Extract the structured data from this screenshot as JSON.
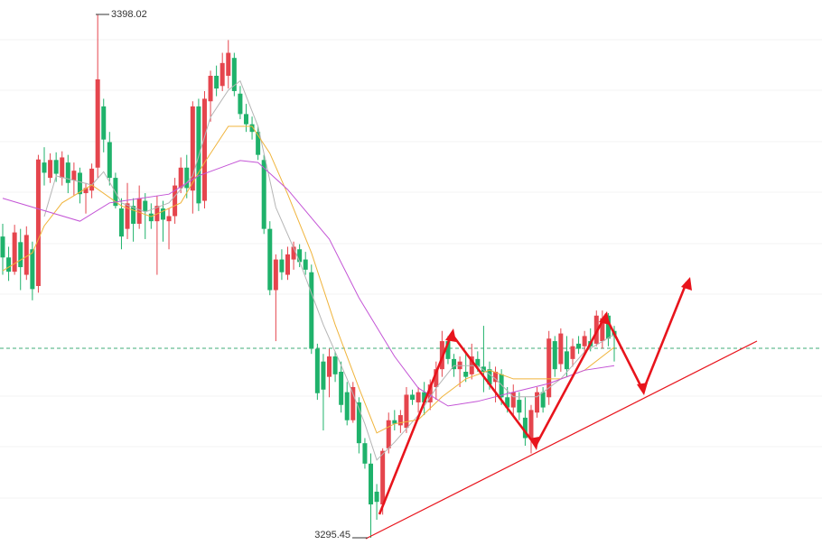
{
  "chart_data": {
    "type": "candlestick",
    "ylim": [
      3294.05,
      3400.85
    ],
    "up_color": "#e5454d",
    "down_color": "#1fb26b",
    "open": [
      3354.5,
      3350.4,
      3347.6,
      3353.4,
      3347.0,
      3352.0,
      3344.8,
      3369.0,
      3366.0,
      3369.5,
      3366.0,
      3369.0,
      3365.5,
      3367.0,
      3363.0,
      3363.5,
      3368.0,
      3380.0,
      3373.0,
      3366.0,
      3360.0,
      3356.0,
      3360.5,
      3357.0,
      3361.5,
      3359.0,
      3357.5,
      3360.0,
      3357.5,
      3358.5,
      3364.0,
      3368.0,
      3363.5,
      3380.0,
      3361.5,
      3381.0,
      3386.0,
      3384.0,
      3386.0,
      3389.5,
      3382.5,
      3378.5,
      3376.5,
      3375.0,
      3369.5,
      3356.0,
      3344.0,
      3350.0,
      3347.0,
      3350.0,
      3352.0,
      3350.0,
      3347.5,
      3332.5,
      3330.0,
      3327.0,
      3331.0,
      3328.0,
      3324.0,
      3318.5,
      3322.0,
      3314.0,
      3310.0,
      3304.5,
      3302.0,
      3313.0,
      3318.5,
      3317.5,
      3317.0,
      3323.5,
      3322.0,
      3324.0,
      3322.0,
      3325.0,
      3328.5,
      3334.0,
      3330.5,
      3328.5,
      3328.0,
      3327.5,
      3330.5,
      3329.0,
      3328.5,
      3326.0,
      3327.5,
      3323.0,
      3321.0,
      3322.5,
      3319.0,
      3315.0,
      3320.0,
      3324.0,
      3323.0,
      3334.0,
      3329.5,
      3332.0,
      3330.5,
      3333.5,
      3333.0,
      3334.0,
      3333.5,
      3334.0,
      3339.0,
      3336.0
    ],
    "high": [
      3357.0,
      3352.5,
      3356.8,
      3356.0,
      3356.5,
      3353.5,
      3370.5,
      3372.0,
      3370.8,
      3371.0,
      3371.2,
      3370.5,
      3369.0,
      3368.0,
      3365.0,
      3368.8,
      3398.02,
      3381.5,
      3375.0,
      3367.0,
      3362.0,
      3365.0,
      3362.0,
      3364.5,
      3363.0,
      3361.0,
      3362.5,
      3361.5,
      3360.0,
      3366.0,
      3370.0,
      3370.5,
      3381.0,
      3381.5,
      3383.0,
      3387.0,
      3388.0,
      3390.5,
      3393.0,
      3390.5,
      3384.0,
      3380.5,
      3378.0,
      3376.0,
      3370.5,
      3357.5,
      3351.0,
      3352.0,
      3352.5,
      3353.5,
      3353.0,
      3351.5,
      3349.0,
      3333.5,
      3331.5,
      3332.5,
      3332.0,
      3330.0,
      3326.0,
      3326.0,
      3323.0,
      3315.0,
      3312.0,
      3306.0,
      3313.0,
      3320.0,
      3320.5,
      3320.5,
      3325.0,
      3324.5,
      3325.0,
      3326.0,
      3326.5,
      3330.0,
      3336.0,
      3335.0,
      3331.5,
      3331.0,
      3332.0,
      3333.5,
      3332.0,
      3337.0,
      3330.0,
      3329.0,
      3328.5,
      3325.0,
      3325.5,
      3324.0,
      3323.0,
      3321.5,
      3325.0,
      3325.0,
      3336.0,
      3335.0,
      3336.5,
      3335.0,
      3334.5,
      3335.0,
      3336.0,
      3336.5,
      3340.0,
      3340.0,
      3339.5,
      3337.0
    ],
    "low": [
      3347.0,
      3345.8,
      3347.0,
      3344.0,
      3346.0,
      3342.0,
      3343.5,
      3364.5,
      3365.0,
      3365.2,
      3364.5,
      3363.0,
      3362.5,
      3361.0,
      3359.0,
      3362.0,
      3366.0,
      3371.0,
      3364.5,
      3360.0,
      3352.0,
      3354.0,
      3353.5,
      3356.0,
      3354.0,
      3356.0,
      3347.0,
      3353.5,
      3352.0,
      3357.0,
      3363.0,
      3362.0,
      3359.0,
      3359.5,
      3360.0,
      3377.0,
      3382.0,
      3383.0,
      3383.5,
      3382.0,
      3377.5,
      3375.0,
      3373.5,
      3369.5,
      3355.0,
      3343.0,
      3334.0,
      3346.0,
      3346.0,
      3348.0,
      3348.5,
      3347.0,
      3331.5,
      3322.5,
      3316.5,
      3323.0,
      3326.0,
      3320.0,
      3317.5,
      3318.0,
      3312.0,
      3309.0,
      3295.45,
      3299.0,
      3300.0,
      3312.0,
      3316.5,
      3316.0,
      3316.0,
      3321.5,
      3320.0,
      3319.5,
      3320.5,
      3322.5,
      3327.0,
      3329.5,
      3327.0,
      3325.0,
      3326.0,
      3326.5,
      3328.0,
      3324.0,
      3324.5,
      3322.0,
      3321.5,
      3320.0,
      3319.5,
      3318.5,
      3313.5,
      3312.0,
      3319.0,
      3320.0,
      3321.5,
      3327.0,
      3328.0,
      3327.0,
      3329.0,
      3331.5,
      3331.5,
      3332.0,
      3333.0,
      3332.5,
      3333.0,
      3330.0
    ],
    "close": [
      3350.4,
      3347.6,
      3355.3,
      3348.5,
      3354.8,
      3344.2,
      3369.6,
      3367.0,
      3369.5,
      3366.8,
      3370.0,
      3365.0,
      3367.4,
      3362.8,
      3364.0,
      3367.8,
      3385.3,
      3373.5,
      3366.0,
      3360.5,
      3354.5,
      3361.0,
      3357.0,
      3362.0,
      3359.5,
      3357.5,
      3360.5,
      3357.8,
      3358.5,
      3364.5,
      3368.0,
      3364.0,
      3380.0,
      3361.0,
      3381.5,
      3386.0,
      3383.5,
      3388.5,
      3390.5,
      3383.0,
      3378.5,
      3376.5,
      3375.0,
      3370.5,
      3356.0,
      3344.0,
      3350.0,
      3347.5,
      3351.0,
      3352.5,
      3349.5,
      3348.0,
      3332.5,
      3323.8,
      3324.5,
      3331.0,
      3327.5,
      3321.5,
      3318.5,
      3325.0,
      3314.0,
      3310.0,
      3302.0,
      3302.5,
      3312.5,
      3318.5,
      3317.8,
      3319.5,
      3323.5,
      3322.5,
      3324.0,
      3322.0,
      3325.5,
      3328.5,
      3334.0,
      3330.5,
      3328.5,
      3330.0,
      3327.0,
      3331.0,
      3329.0,
      3328.0,
      3325.5,
      3328.0,
      3323.0,
      3321.0,
      3324.0,
      3320.0,
      3315.0,
      3320.5,
      3324.0,
      3321.0,
      3334.5,
      3328.5,
      3335.5,
      3328.5,
      3333.0,
      3332.5,
      3335.0,
      3333.0,
      3339.0,
      3338.5,
      3334.5,
      3335.0
    ],
    "lines": [
      {
        "color": "#b5b5b5",
        "x": [
          7,
          9,
          12,
          15,
          17,
          20,
          24,
          28,
          32,
          35,
          38,
          40,
          43,
          46,
          50,
          54,
          58,
          61,
          63,
          66,
          70,
          73,
          76,
          80,
          83,
          86,
          90,
          94,
          98,
          103
        ],
        "values": [
          3358.4,
          3366.4,
          3365.5,
          3364.6,
          3367.2,
          3361.1,
          3359.3,
          3361.1,
          3366.4,
          3377.9,
          3383.2,
          3385.0,
          3376.1,
          3360.2,
          3349.6,
          3337.2,
          3326.6,
          3317.8,
          3310.7,
          3314.2,
          3319.5,
          3324.8,
          3329.2,
          3329.2,
          3326.6,
          3323.1,
          3323.1,
          3326.6,
          3331.9,
          3335.3
        ]
      },
      {
        "color": "#f0b43c",
        "x": [
          0,
          5,
          7,
          10,
          15,
          20,
          25,
          30,
          34,
          38,
          42,
          45,
          48,
          52,
          56,
          60,
          63,
          66,
          70,
          74,
          78,
          82,
          86,
          90,
          94,
          98,
          103
        ],
        "values": [
          3347.8,
          3351.3,
          3356.6,
          3361.1,
          3364.6,
          3360.5,
          3358.4,
          3361.1,
          3369.0,
          3376.1,
          3376.1,
          3370.8,
          3362.8,
          3351.3,
          3337.2,
          3324.8,
          3316.0,
          3317.8,
          3318.6,
          3323.1,
          3326.6,
          3328.3,
          3326.6,
          3326.6,
          3326.6,
          3328.3,
          3332.8
        ]
      },
      {
        "color": "#c455d6",
        "x": [
          0,
          13,
          18,
          28,
          33,
          40,
          43,
          48,
          55,
          60,
          66,
          70,
          75,
          80,
          86,
          92,
          98,
          103
        ],
        "values": [
          3362.0,
          3357.5,
          3361.1,
          3362.8,
          3366.4,
          3369.4,
          3369.0,
          3363.7,
          3354.0,
          3342.5,
          3331.0,
          3324.8,
          3321.3,
          3322.2,
          3324.0,
          3325.7,
          3328.3,
          3329.2
        ]
      }
    ],
    "price_line": 3332.6,
    "high_label": 3398.02,
    "low_label": 3295.45
  }
}
